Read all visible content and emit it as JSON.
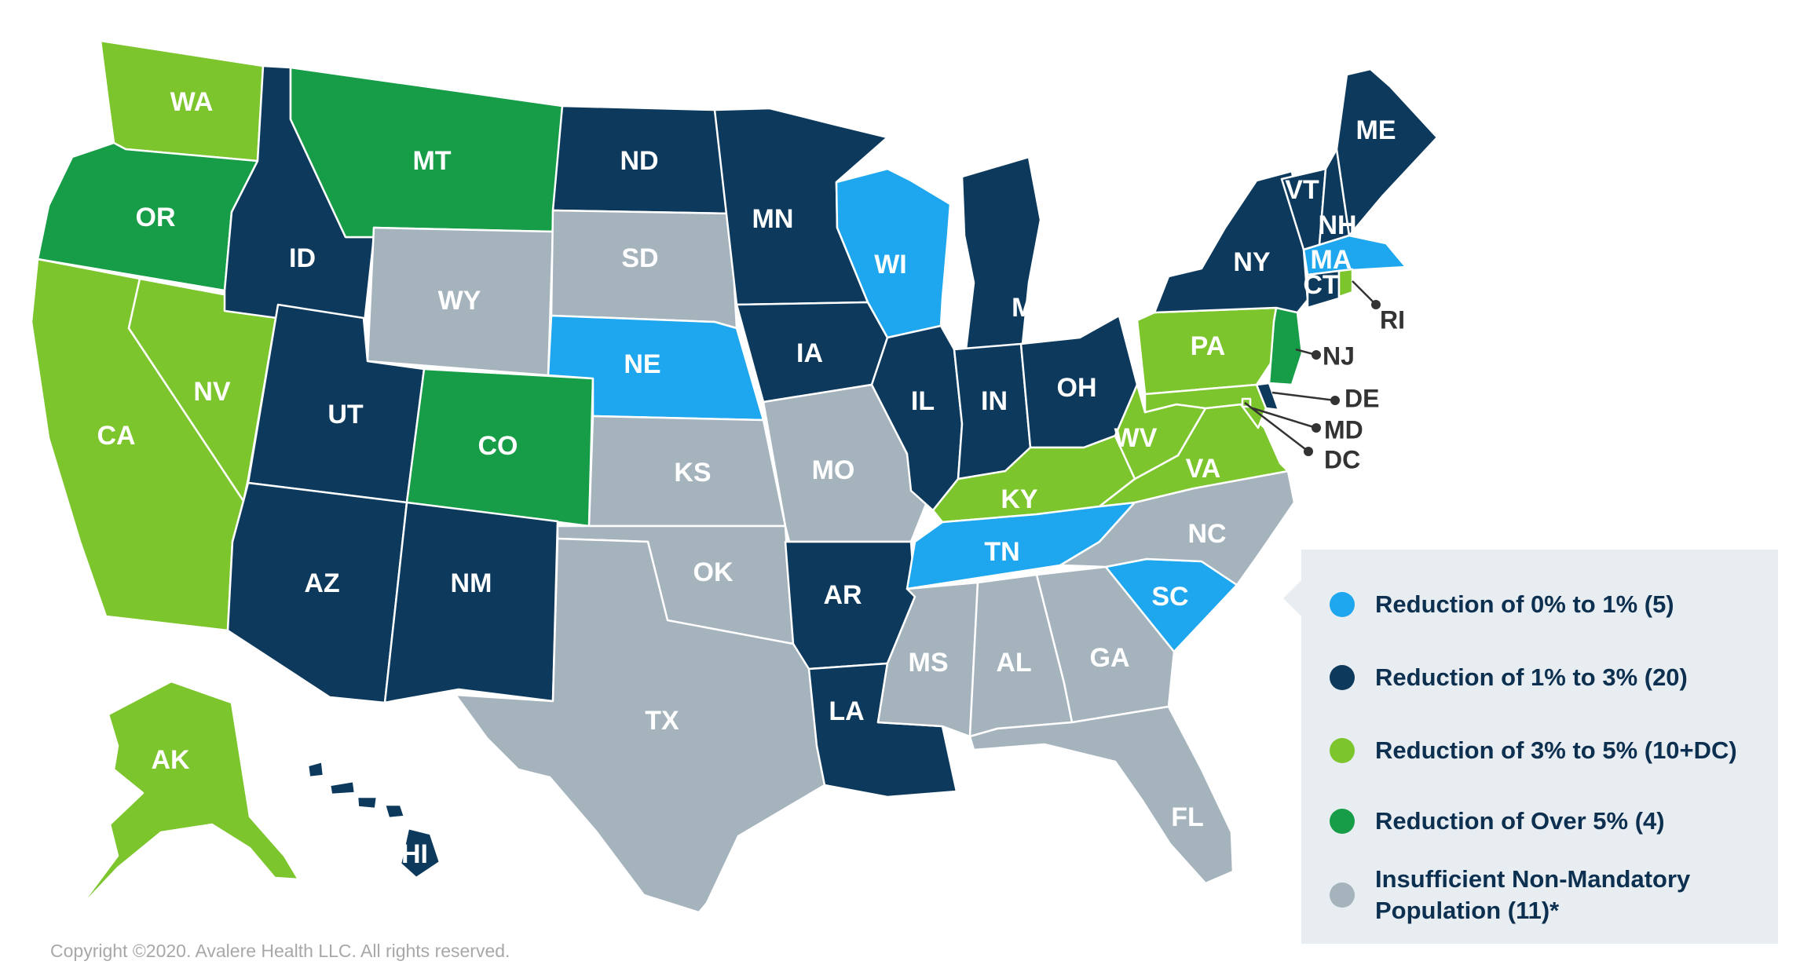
{
  "colors": {
    "r0_1": "#1ea7ee",
    "r1_3": "#0d3a5c",
    "r3_5": "#7cc52c",
    "over5": "#179d48",
    "insufficient": "#a5b3bd"
  },
  "states": [
    {
      "abbr": "WA",
      "category": "r3_5"
    },
    {
      "abbr": "OR",
      "category": "over5"
    },
    {
      "abbr": "CA",
      "category": "r3_5"
    },
    {
      "abbr": "NV",
      "category": "r3_5"
    },
    {
      "abbr": "ID",
      "category": "r1_3"
    },
    {
      "abbr": "MT",
      "category": "over5"
    },
    {
      "abbr": "WY",
      "category": "insufficient"
    },
    {
      "abbr": "UT",
      "category": "r1_3"
    },
    {
      "abbr": "AZ",
      "category": "r1_3"
    },
    {
      "abbr": "CO",
      "category": "over5"
    },
    {
      "abbr": "NM",
      "category": "r1_3"
    },
    {
      "abbr": "ND",
      "category": "r1_3"
    },
    {
      "abbr": "SD",
      "category": "insufficient"
    },
    {
      "abbr": "NE",
      "category": "r0_1"
    },
    {
      "abbr": "KS",
      "category": "insufficient"
    },
    {
      "abbr": "OK",
      "category": "insufficient"
    },
    {
      "abbr": "TX",
      "category": "insufficient"
    },
    {
      "abbr": "MN",
      "category": "r1_3"
    },
    {
      "abbr": "IA",
      "category": "r1_3"
    },
    {
      "abbr": "MO",
      "category": "insufficient"
    },
    {
      "abbr": "AR",
      "category": "r1_3"
    },
    {
      "abbr": "LA",
      "category": "r1_3"
    },
    {
      "abbr": "WI",
      "category": "r0_1"
    },
    {
      "abbr": "IL",
      "category": "r1_3"
    },
    {
      "abbr": "MI",
      "category": "r1_3"
    },
    {
      "abbr": "IN",
      "category": "r1_3"
    },
    {
      "abbr": "OH",
      "category": "r1_3"
    },
    {
      "abbr": "KY",
      "category": "r3_5"
    },
    {
      "abbr": "TN",
      "category": "r0_1"
    },
    {
      "abbr": "MS",
      "category": "insufficient"
    },
    {
      "abbr": "AL",
      "category": "insufficient"
    },
    {
      "abbr": "GA",
      "category": "insufficient"
    },
    {
      "abbr": "FL",
      "category": "insufficient"
    },
    {
      "abbr": "SC",
      "category": "r0_1"
    },
    {
      "abbr": "NC",
      "category": "insufficient"
    },
    {
      "abbr": "VA",
      "category": "r3_5"
    },
    {
      "abbr": "WV",
      "category": "r3_5"
    },
    {
      "abbr": "PA",
      "category": "r3_5"
    },
    {
      "abbr": "NY",
      "category": "r1_3"
    },
    {
      "abbr": "VT",
      "category": "r1_3"
    },
    {
      "abbr": "NH",
      "category": "r1_3"
    },
    {
      "abbr": "ME",
      "category": "r1_3"
    },
    {
      "abbr": "MA",
      "category": "r0_1"
    },
    {
      "abbr": "CT",
      "category": "r1_3"
    },
    {
      "abbr": "RI",
      "category": "r3_5"
    },
    {
      "abbr": "NJ",
      "category": "over5"
    },
    {
      "abbr": "DE",
      "category": "r1_3"
    },
    {
      "abbr": "MD",
      "category": "r3_5"
    },
    {
      "abbr": "DC",
      "category": "r3_5"
    },
    {
      "abbr": "AK",
      "category": "r3_5"
    },
    {
      "abbr": "HI",
      "category": "r1_3"
    }
  ],
  "legend": [
    {
      "category": "r0_1",
      "label": "Reduction of 0% to 1% (5)"
    },
    {
      "category": "r1_3",
      "label": "Reduction of 1% to 3% (20)"
    },
    {
      "category": "r3_5",
      "label": "Reduction of 3% to 5% (10+DC)"
    },
    {
      "category": "over5",
      "label": "Reduction of Over 5% (4)"
    },
    {
      "category": "insufficient",
      "label": "Insufficient Non-Mandatory\nPopulation (11)*"
    }
  ],
  "copyright": "Copyright ©2020. Avalere Health LLC. All rights reserved."
}
